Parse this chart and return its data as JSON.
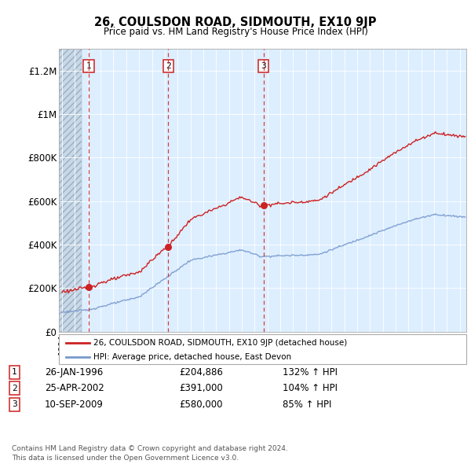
{
  "title": "26, COULSDON ROAD, SIDMOUTH, EX10 9JP",
  "subtitle": "Price paid vs. HM Land Registry's House Price Index (HPI)",
  "ylim": [
    0,
    1300000
  ],
  "xlim_start": 1993.75,
  "xlim_end": 2025.5,
  "yticks": [
    0,
    200000,
    400000,
    600000,
    800000,
    1000000,
    1200000
  ],
  "ytick_labels": [
    "£0",
    "£200K",
    "£400K",
    "£600K",
    "£800K",
    "£1M",
    "£1.2M"
  ],
  "sale_dates_num": [
    1996.07,
    2002.27,
    2009.69
  ],
  "sale_prices": [
    204886,
    391000,
    580000
  ],
  "sale_labels": [
    "1",
    "2",
    "3"
  ],
  "red_line_color": "#cc2222",
  "blue_line_color": "#7799cc",
  "dot_color": "#cc2222",
  "vline_color": "#cc2222",
  "hatch_end": 1995.5,
  "legend_entries": [
    "26, COULSDON ROAD, SIDMOUTH, EX10 9JP (detached house)",
    "HPI: Average price, detached house, East Devon"
  ],
  "table_rows": [
    [
      "1",
      "26-JAN-1996",
      "£204,886",
      "132% ↑ HPI"
    ],
    [
      "2",
      "25-APR-2002",
      "£391,000",
      "104% ↑ HPI"
    ],
    [
      "3",
      "10-SEP-2009",
      "£580,000",
      "85% ↑ HPI"
    ]
  ],
  "footer_text": "Contains HM Land Registry data © Crown copyright and database right 2024.\nThis data is licensed under the Open Government Licence v3.0.",
  "background_color": "#ffffff",
  "plot_bg_color": "#ddeeff",
  "hatch_bg_color": "#c8d8e8",
  "grid_color": "#ffffff"
}
